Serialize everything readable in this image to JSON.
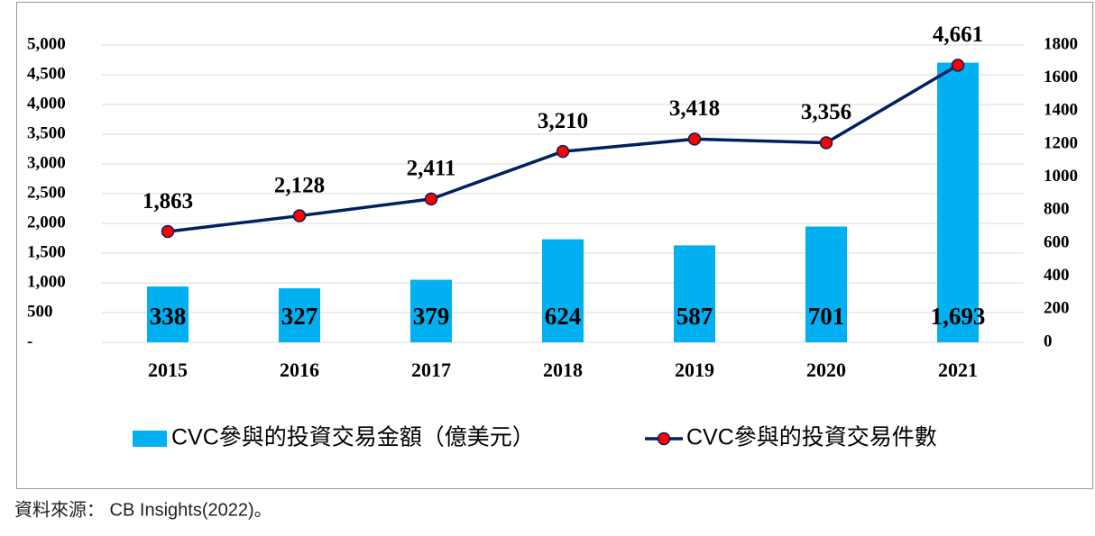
{
  "chart_data": {
    "type": "combo",
    "categories": [
      "2015",
      "2016",
      "2017",
      "2018",
      "2019",
      "2020",
      "2021"
    ],
    "series": [
      {
        "name": "CVC參與的投資交易金額（億美元）",
        "type": "bar",
        "axis": "y2",
        "color": "#00b0f0",
        "values": [
          338,
          327,
          379,
          624,
          587,
          701,
          1693
        ],
        "value_labels": [
          "338",
          "327",
          "379",
          "624",
          "587",
          "701",
          "1,693"
        ]
      },
      {
        "name": "CVC參與的投資交易件數",
        "type": "line",
        "axis": "y",
        "color": "#002060",
        "marker_color": "#ff0000",
        "values": [
          1863,
          2128,
          2411,
          3210,
          3418,
          3356,
          4661
        ],
        "value_labels": [
          "1,863",
          "2,128",
          "2,411",
          "3,210",
          "3,418",
          "3,356",
          "4,661"
        ]
      }
    ],
    "ylim": [
      0,
      5000
    ],
    "yticks": [
      {
        "value": 0,
        "label": "-"
      },
      500,
      {
        "value": 1000,
        "label": "1,000"
      },
      {
        "value": 1500,
        "label": "1,500"
      },
      {
        "value": 2000,
        "label": "2,000"
      },
      {
        "value": 2500,
        "label": "2,500"
      },
      {
        "value": 3000,
        "label": "3,000"
      },
      {
        "value": 3500,
        "label": "3,500"
      },
      {
        "value": 4000,
        "label": "4,000"
      },
      {
        "value": 4500,
        "label": "4,500"
      },
      {
        "value": 5000,
        "label": "5,000"
      }
    ],
    "y2lim": [
      0,
      1800
    ],
    "y2ticks": [
      0,
      200,
      400,
      600,
      800,
      1000,
      1200,
      1400,
      1600,
      1800
    ],
    "grid": true,
    "legend": "bottom",
    "source": "資料來源： CB Insights(2022)。"
  }
}
